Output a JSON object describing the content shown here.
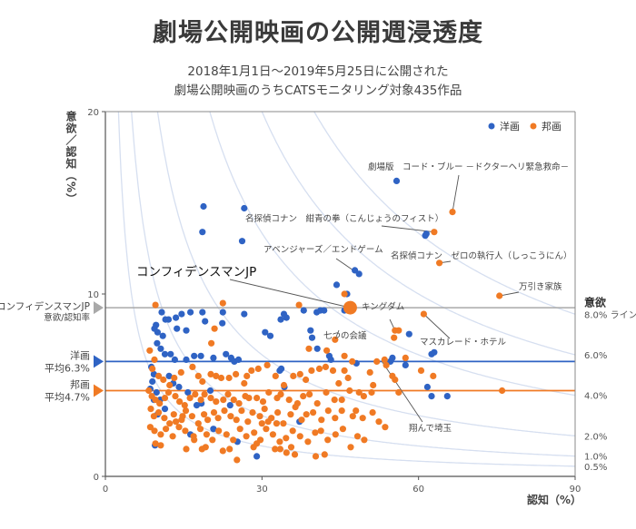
{
  "title": "劇場公開映画の公開週浸透度",
  "subtitle_lines": [
    "2018年1月1日～2019年5月25日に公開された",
    "劇場公開映画のうちCATSモニタリング対象435作品"
  ],
  "chart_data": {
    "type": "scatter",
    "title": "劇場公開映画の公開週浸透度",
    "xlabel": "認知（%）",
    "ylabel": "意欲／認知（%）",
    "xlim": [
      0,
      90
    ],
    "ylim": [
      0,
      20
    ],
    "xticks": [
      "0",
      "30",
      "60",
      "90"
    ],
    "yticks": [
      "0",
      "10",
      "20"
    ],
    "legend": {
      "position": "top-right",
      "entries": [
        "洋画",
        "邦画"
      ]
    },
    "colors": {
      "洋画": "#2f63c4",
      "邦画": "#f07a24",
      "reference": "#a9a9a9",
      "iso": "#d6dff0"
    },
    "iso_lines": {
      "title": "意欲",
      "values": [
        0.5,
        1.0,
        2.0,
        4.0,
        6.0,
        8.0
      ],
      "labels": [
        "0.5%",
        "1.0%",
        "2.0%",
        "4.0%",
        "6.0%",
        "8.0% ライン"
      ]
    },
    "reference_lines": [
      {
        "name": "洋画",
        "label_lines": [
          "洋画",
          "平均6.3%"
        ],
        "value": 6.3
      },
      {
        "name": "邦画",
        "label_lines": [
          "邦画",
          "平均4.7%"
        ],
        "value": 4.7
      },
      {
        "name": "コンフィデンスマンJP",
        "label_lines": [
          "コンフィデンスマンJP",
          "意欲/認知率"
        ],
        "value": 9.25
      }
    ],
    "highlight": {
      "label": "コンフィデンスマンJP",
      "x": 46.9,
      "y": 9.25,
      "series": "邦画"
    },
    "annotations": [
      {
        "label": "劇場版　コード・ブルー －ドクターヘリ緊急救命－",
        "x": 66.5,
        "y": 14.5
      },
      {
        "label": "名探偵コナン　紺青の拳（こんじょうのフィスト）",
        "x": 63.0,
        "y": 13.4
      },
      {
        "label": "アベンジャーズ／エンドゲーム",
        "x": 48.0,
        "y": 11.2
      },
      {
        "label": "名探偵コナン　ゼロの執行人（しっこうにん）",
        "x": 64.0,
        "y": 11.7
      },
      {
        "label": "万引き家族",
        "x": 75.5,
        "y": 9.9
      },
      {
        "label": "キングダム",
        "x": 55.5,
        "y": 8.0
      },
      {
        "label": "七つの会議",
        "x": 44.0,
        "y": 7.5
      },
      {
        "label": "マスカレード・ホテル",
        "x": 61.0,
        "y": 8.9
      },
      {
        "label": "翔んで埼玉",
        "x": 53.0,
        "y": 6.3
      }
    ],
    "series": [
      {
        "name": "洋画",
        "points": [
          [
            18.8,
            14.8
          ],
          [
            26.6,
            14.7
          ],
          [
            18.6,
            13.4
          ],
          [
            26.2,
            12.9
          ],
          [
            55.8,
            16.2
          ],
          [
            61.3,
            13.2
          ],
          [
            61.5,
            13.3
          ],
          [
            47.8,
            11.3
          ],
          [
            48.6,
            11.1
          ],
          [
            44.3,
            10.5
          ],
          [
            46.3,
            10.0
          ],
          [
            45.8,
            9.1
          ],
          [
            38.0,
            9.1
          ],
          [
            40.5,
            9.0
          ],
          [
            41.2,
            9.1
          ],
          [
            41.9,
            9.1
          ],
          [
            26.6,
            8.9
          ],
          [
            22.5,
            9.0
          ],
          [
            18.6,
            9.0
          ],
          [
            16.3,
            9.0
          ],
          [
            14.6,
            8.9
          ],
          [
            13.5,
            8.7
          ],
          [
            10.8,
            9.0
          ],
          [
            11.5,
            8.6
          ],
          [
            12.1,
            8.6
          ],
          [
            19.1,
            8.5
          ],
          [
            22.4,
            8.4
          ],
          [
            13.7,
            8.1
          ],
          [
            15.5,
            8.0
          ],
          [
            9.7,
            8.3
          ],
          [
            9.4,
            8.1
          ],
          [
            10.0,
            7.9
          ],
          [
            11.0,
            7.7
          ],
          [
            9.9,
            7.3
          ],
          [
            10.6,
            7.0
          ],
          [
            12.5,
            6.7
          ],
          [
            11.4,
            6.7
          ],
          [
            13.3,
            6.4
          ],
          [
            15.5,
            6.4
          ],
          [
            17.0,
            6.6
          ],
          [
            18.3,
            6.6
          ],
          [
            20.7,
            6.5
          ],
          [
            23.1,
            6.7
          ],
          [
            24.1,
            6.5
          ],
          [
            24.7,
            6.3
          ],
          [
            25.5,
            6.4
          ],
          [
            30.6,
            7.9
          ],
          [
            31.6,
            7.7
          ],
          [
            33.6,
            8.6
          ],
          [
            34.2,
            8.9
          ],
          [
            34.7,
            8.7
          ],
          [
            39.3,
            8.0
          ],
          [
            39.6,
            7.6
          ],
          [
            40.6,
            7.0
          ],
          [
            43.2,
            6.4
          ],
          [
            42.9,
            6.6
          ],
          [
            55.0,
            6.5
          ],
          [
            54.6,
            6.3
          ],
          [
            62.5,
            6.7
          ],
          [
            63.0,
            6.8
          ],
          [
            58.2,
            7.8
          ],
          [
            57.5,
            6.1
          ],
          [
            61.7,
            4.9
          ],
          [
            62.5,
            4.4
          ],
          [
            65.5,
            4.4
          ],
          [
            33.4,
            5.8
          ],
          [
            33.7,
            5.9
          ],
          [
            8.8,
            6.0
          ],
          [
            9.3,
            5.6
          ],
          [
            9.0,
            5.2
          ],
          [
            8.6,
            4.8
          ],
          [
            9.8,
            4.6
          ],
          [
            10.5,
            4.2
          ],
          [
            11.4,
            3.7
          ],
          [
            10.0,
            3.4
          ],
          [
            9.3,
            4.2
          ],
          [
            14.1,
            4.9
          ],
          [
            15.8,
            4.6
          ],
          [
            17.5,
            3.9
          ],
          [
            18.4,
            4.0
          ],
          [
            20.1,
            4.7
          ],
          [
            23.9,
            3.9
          ],
          [
            20.7,
            2.6
          ],
          [
            16.3,
            2.3
          ],
          [
            34.3,
            4.9
          ],
          [
            37.2,
            3.0
          ],
          [
            9.5,
            1.7
          ],
          [
            25.3,
            1.9
          ],
          [
            29.0,
            1.1
          ],
          [
            48.1,
            6.2
          ],
          [
            12.2,
            5.5
          ],
          [
            13.0,
            5.1
          ]
        ]
      },
      {
        "name": "邦画",
        "points": [
          [
            66.5,
            14.5
          ],
          [
            63.0,
            13.4
          ],
          [
            64.0,
            11.7
          ],
          [
            75.5,
            9.9
          ],
          [
            45.8,
            10.0
          ],
          [
            55.5,
            8.0
          ],
          [
            56.2,
            8.0
          ],
          [
            55.3,
            7.6
          ],
          [
            61.0,
            8.9
          ],
          [
            44.0,
            7.5
          ],
          [
            9.6,
            9.4
          ],
          [
            22.5,
            9.5
          ],
          [
            37.1,
            9.4
          ],
          [
            20.9,
            8.1
          ],
          [
            20.3,
            7.3
          ],
          [
            39.0,
            7.0
          ],
          [
            42.4,
            6.9
          ],
          [
            45.8,
            6.6
          ],
          [
            47.3,
            6.3
          ],
          [
            52.0,
            6.3
          ],
          [
            53.5,
            6.4
          ],
          [
            53.8,
            6.1
          ],
          [
            50.7,
            5.7
          ],
          [
            51.3,
            5.0
          ],
          [
            51.0,
            4.6
          ],
          [
            56.2,
            4.6
          ],
          [
            57.5,
            6.5
          ],
          [
            76.0,
            4.7
          ],
          [
            55.5,
            5.3
          ],
          [
            55.0,
            5.5
          ],
          [
            8.5,
            6.9
          ],
          [
            9.4,
            6.4
          ],
          [
            9.0,
            5.9
          ],
          [
            10.2,
            5.5
          ],
          [
            11.1,
            5.3
          ],
          [
            12.3,
            5.0
          ],
          [
            13.2,
            5.4
          ],
          [
            14.5,
            5.7
          ],
          [
            16.7,
            6.0
          ],
          [
            17.8,
            5.5
          ],
          [
            18.6,
            5.2
          ],
          [
            20.2,
            5.6
          ],
          [
            21.2,
            5.5
          ],
          [
            22.2,
            5.4
          ],
          [
            23.7,
            5.4
          ],
          [
            25.0,
            5.6
          ],
          [
            26.6,
            5.1
          ],
          [
            27.1,
            5.5
          ],
          [
            28.0,
            5.8
          ],
          [
            29.3,
            5.9
          ],
          [
            31.0,
            6.1
          ],
          [
            32.6,
            5.5
          ],
          [
            34.2,
            5.0
          ],
          [
            36.0,
            5.5
          ],
          [
            37.3,
            5.6
          ],
          [
            38.4,
            5.3
          ],
          [
            39.5,
            5.8
          ],
          [
            41.0,
            5.9
          ],
          [
            42.2,
            6.0
          ],
          [
            43.6,
            5.8
          ],
          [
            44.7,
            5.1
          ],
          [
            45.8,
            5.8
          ],
          [
            46.5,
            5.4
          ],
          [
            48.6,
            4.6
          ],
          [
            49.5,
            4.4
          ],
          [
            8.3,
            4.7
          ],
          [
            8.9,
            4.4
          ],
          [
            9.6,
            4.2
          ],
          [
            10.4,
            4.0
          ],
          [
            11.4,
            4.3
          ],
          [
            12.1,
            4.6
          ],
          [
            13.4,
            4.4
          ],
          [
            14.2,
            4.1
          ],
          [
            15.2,
            3.9
          ],
          [
            16.2,
            4.3
          ],
          [
            17.2,
            4.5
          ],
          [
            18.3,
            4.2
          ],
          [
            19.0,
            4.5
          ],
          [
            20.2,
            4.3
          ],
          [
            21.2,
            4.1
          ],
          [
            22.6,
            4.2
          ],
          [
            23.5,
            4.5
          ],
          [
            24.6,
            4.2
          ],
          [
            25.6,
            4.0
          ],
          [
            26.8,
            4.4
          ],
          [
            27.5,
            4.3
          ],
          [
            29.0,
            4.3
          ],
          [
            30.2,
            4.1
          ],
          [
            31.3,
            4.6
          ],
          [
            32.9,
            4.3
          ],
          [
            33.6,
            4.5
          ],
          [
            35.2,
            4.2
          ],
          [
            36.8,
            4.0
          ],
          [
            37.9,
            4.4
          ],
          [
            39.1,
            4.5
          ],
          [
            40.6,
            4.0
          ],
          [
            42.3,
            4.6
          ],
          [
            43.9,
            4.2
          ],
          [
            45.3,
            4.2
          ],
          [
            46.8,
            4.7
          ],
          [
            8.7,
            3.7
          ],
          [
            9.3,
            3.3
          ],
          [
            10.2,
            3.5
          ],
          [
            11.3,
            3.2
          ],
          [
            12.3,
            2.9
          ],
          [
            13.1,
            3.4
          ],
          [
            14.6,
            3.1
          ],
          [
            15.4,
            3.6
          ],
          [
            16.6,
            3.3
          ],
          [
            17.8,
            2.9
          ],
          [
            18.9,
            3.4
          ],
          [
            19.6,
            3.1
          ],
          [
            20.8,
            3.5
          ],
          [
            21.6,
            3.2
          ],
          [
            22.8,
            3.6
          ],
          [
            24.0,
            3.3
          ],
          [
            25.1,
            3.1
          ],
          [
            26.1,
            3.6
          ],
          [
            27.3,
            3.0
          ],
          [
            28.2,
            3.5
          ],
          [
            29.6,
            3.3
          ],
          [
            30.5,
            3.7
          ],
          [
            31.8,
            3.2
          ],
          [
            33.0,
            3.5
          ],
          [
            34.1,
            2.9
          ],
          [
            35.5,
            3.4
          ],
          [
            36.4,
            3.8
          ],
          [
            37.6,
            3.1
          ],
          [
            38.5,
            3.4
          ],
          [
            39.8,
            3.5
          ],
          [
            41.4,
            3.1
          ],
          [
            42.7,
            3.6
          ],
          [
            44.0,
            3.2
          ],
          [
            45.3,
            3.6
          ],
          [
            47.4,
            3.3
          ],
          [
            48.0,
            3.6
          ],
          [
            49.3,
            3.2
          ],
          [
            51.2,
            3.5
          ],
          [
            52.4,
            3.0
          ],
          [
            53.6,
            2.7
          ],
          [
            8.6,
            2.7
          ],
          [
            9.4,
            2.5
          ],
          [
            10.6,
            2.3
          ],
          [
            11.6,
            2.6
          ],
          [
            12.9,
            2.2
          ],
          [
            14.1,
            2.7
          ],
          [
            15.3,
            2.5
          ],
          [
            16.9,
            2.2
          ],
          [
            18.2,
            2.6
          ],
          [
            19.4,
            2.3
          ],
          [
            20.5,
            2.0
          ],
          [
            21.7,
            2.5
          ],
          [
            23.2,
            2.3
          ],
          [
            24.5,
            2.0
          ],
          [
            25.8,
            2.6
          ],
          [
            27.0,
            2.2
          ],
          [
            28.5,
            2.4
          ],
          [
            29.7,
            2.0
          ],
          [
            30.8,
            2.6
          ],
          [
            32.1,
            2.3
          ],
          [
            33.4,
            1.9
          ],
          [
            34.6,
            2.1
          ],
          [
            35.9,
            2.5
          ],
          [
            37.3,
            2.2
          ],
          [
            38.8,
            1.9
          ],
          [
            40.2,
            2.4
          ],
          [
            41.3,
            2.5
          ],
          [
            42.6,
            2.0
          ],
          [
            44.1,
            2.3
          ],
          [
            45.5,
            2.6
          ],
          [
            47.0,
            1.6
          ],
          [
            48.3,
            2.2
          ],
          [
            49.6,
            2.0
          ],
          [
            35.6,
            1.6
          ],
          [
            34.7,
            1.3
          ],
          [
            36.3,
            1.2
          ],
          [
            22.5,
            1.4
          ],
          [
            17.0,
            2.0
          ],
          [
            18.5,
            1.5
          ],
          [
            19.2,
            1.6
          ],
          [
            23.8,
            1.5
          ],
          [
            9.6,
            1.8
          ],
          [
            10.6,
            1.7
          ],
          [
            15.5,
            1.5
          ],
          [
            40.3,
            1.1
          ],
          [
            42.0,
            1.2
          ],
          [
            29.0,
            1.8
          ],
          [
            28.4,
            1.6
          ],
          [
            32.5,
            1.5
          ],
          [
            33.5,
            1.5
          ],
          [
            25.2,
            0.9
          ],
          [
            30.0,
            2.9
          ],
          [
            31.2,
            3.0
          ],
          [
            32.8,
            2.9
          ],
          [
            60.5,
            5.8
          ],
          [
            62.8,
            5.5
          ],
          [
            13.5,
            3.0
          ],
          [
            14.8,
            3.3
          ]
        ]
      }
    ]
  }
}
